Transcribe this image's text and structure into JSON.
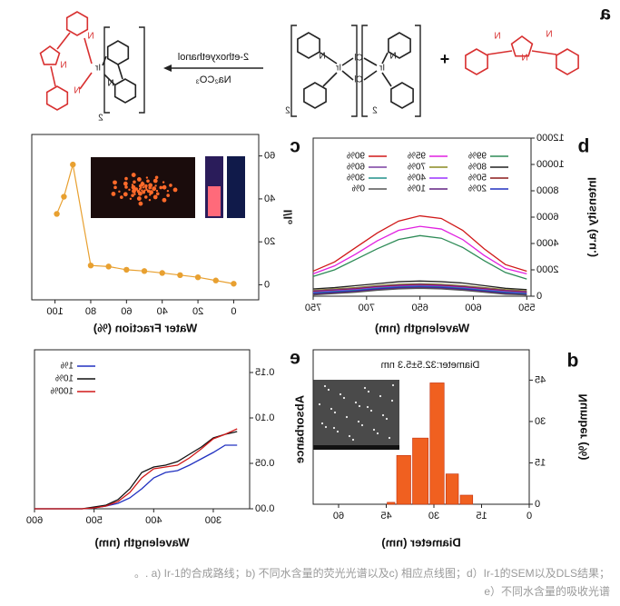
{
  "scheme": {
    "panel": "a",
    "reagent": "2-ethoxyethanol",
    "base": "Na₂CO₃",
    "plus": "+",
    "atoms": [
      "N",
      "N",
      "N",
      "Ir",
      "Cl",
      "Cl",
      "Ir",
      "N",
      "N",
      "2",
      "2",
      "Ir",
      "N",
      "N",
      "N",
      "N",
      "2"
    ]
  },
  "chart_data": [
    {
      "type": "line",
      "panel": "b",
      "xlabel": "Wavelength (nm)",
      "ylabel": "Intensity (a.u.)",
      "x": [
        550,
        570,
        590,
        610,
        630,
        650,
        670,
        690,
        710,
        730,
        750
      ],
      "xlim": [
        546,
        750
      ],
      "xticks": [
        550,
        600,
        650,
        700,
        750
      ],
      "ylim": [
        0,
        12000
      ],
      "yticks": [
        0,
        2000,
        4000,
        6000,
        8000,
        10000,
        12000
      ],
      "series": [
        {
          "name": "99%",
          "color": "#2e8b57",
          "values": [
            1300,
            1800,
            2700,
            3700,
            4400,
            4600,
            4300,
            3600,
            2800,
            2000,
            1500
          ]
        },
        {
          "name": "95%",
          "color": "#e020e0",
          "values": [
            1700,
            2100,
            3100,
            4300,
            5100,
            5300,
            5000,
            4200,
            3200,
            2300,
            1700
          ]
        },
        {
          "name": "90%",
          "color": "#d01818",
          "values": [
            1900,
            2400,
            3600,
            5000,
            5900,
            6100,
            5700,
            4800,
            3700,
            2600,
            1900
          ]
        },
        {
          "name": "80%",
          "color": "#222222",
          "values": [
            500,
            600,
            800,
            1000,
            1100,
            1150,
            1100,
            950,
            800,
            650,
            550
          ]
        },
        {
          "name": "70%",
          "color": "#8a8a20",
          "values": [
            400,
            500,
            650,
            800,
            900,
            950,
            900,
            800,
            650,
            550,
            450
          ]
        },
        {
          "name": "60%",
          "color": "#7a3fa0",
          "values": [
            350,
            450,
            600,
            750,
            850,
            900,
            850,
            750,
            600,
            500,
            400
          ]
        },
        {
          "name": "50%",
          "color": "#8b1a1a",
          "values": [
            300,
            400,
            550,
            700,
            800,
            850,
            800,
            700,
            550,
            450,
            350
          ]
        },
        {
          "name": "40%",
          "color": "#9b30ff",
          "values": [
            250,
            350,
            500,
            650,
            750,
            800,
            750,
            650,
            500,
            400,
            300
          ]
        },
        {
          "name": "30%",
          "color": "#20908a",
          "values": [
            200,
            300,
            450,
            600,
            700,
            750,
            700,
            600,
            450,
            350,
            250
          ]
        },
        {
          "name": "20%",
          "color": "#2030c0",
          "values": [
            150,
            250,
            400,
            550,
            650,
            700,
            650,
            550,
            400,
            300,
            200
          ]
        },
        {
          "name": "10%",
          "color": "#602080",
          "values": [
            100,
            200,
            350,
            500,
            600,
            650,
            600,
            500,
            350,
            250,
            150
          ]
        },
        {
          "name": "0%",
          "color": "#555555",
          "values": [
            100,
            150,
            300,
            450,
            550,
            600,
            550,
            450,
            300,
            200,
            100
          ]
        }
      ]
    },
    {
      "type": "line",
      "panel": "c",
      "xlabel": "Water Fraction (%)",
      "ylabel": "I/I₀",
      "markers": true,
      "x": [
        0,
        10,
        20,
        30,
        40,
        50,
        60,
        70,
        80,
        90,
        95,
        99
      ],
      "values": [
        0.5,
        2,
        3.5,
        4.5,
        5.5,
        6.4,
        7,
        8.5,
        9,
        56,
        41,
        33
      ],
      "color": "#e8a030",
      "xlim": [
        -14,
        113
      ],
      "xticks": [
        0,
        20,
        40,
        60,
        80,
        100
      ],
      "ylim": [
        -7,
        70
      ],
      "yticks": [
        0,
        20,
        40,
        60
      ]
    },
    {
      "type": "histogram",
      "panel": "d",
      "xlabel": "Diameter (nm)",
      "ylabel": "Number (%)",
      "annotation": "Diameter:32.5±5.3 nm",
      "bins": [
        17.5,
        22,
        26.5,
        31.5,
        37,
        42,
        45
      ],
      "values": [
        3.3,
        11,
        44,
        24,
        17.7,
        0.7
      ],
      "color": "#f06020",
      "xlim": [
        0,
        68
      ],
      "xticks": [
        0,
        15,
        30,
        45,
        60
      ],
      "ylim": [
        0,
        56
      ],
      "yticks": [
        0,
        15,
        30,
        45
      ]
    },
    {
      "type": "line",
      "panel": "e",
      "xlabel": "Wavelength (nm)",
      "ylabel": "Absorbance",
      "x": [
        260,
        280,
        300,
        320,
        340,
        360,
        380,
        400,
        420,
        440,
        460,
        480,
        500,
        520,
        540,
        560,
        580,
        600
      ],
      "xlim": [
        239,
        600
      ],
      "xticks": [
        300,
        400,
        500,
        600
      ],
      "ylim": [
        0,
        0.175
      ],
      "yticks": [
        {
          "value": 0,
          "label": "0.00"
        },
        0.05,
        {
          "value": 0.1,
          "label": "0.10"
        },
        0.15
      ],
      "series": [
        {
          "name": "1%",
          "color": "#2030c0",
          "values": [
            0.07,
            0.07,
            0.062,
            0.055,
            0.048,
            0.042,
            0.04,
            0.034,
            0.022,
            0.012,
            0.006,
            0.003,
            0.001,
            0,
            0,
            0,
            0,
            0
          ]
        },
        {
          "name": "10%",
          "color": "#111111",
          "values": [
            0.085,
            0.082,
            0.078,
            0.068,
            0.06,
            0.052,
            0.048,
            0.046,
            0.04,
            0.022,
            0.01,
            0.004,
            0.002,
            0,
            0,
            0,
            0,
            0
          ]
        },
        {
          "name": "100%",
          "color": "#d01818",
          "values": [
            0.088,
            0.082,
            0.077,
            0.066,
            0.056,
            0.048,
            0.046,
            0.044,
            0.034,
            0.018,
            0.008,
            0.003,
            0.001,
            0,
            0,
            0,
            0,
            0
          ]
        }
      ]
    }
  ],
  "caption": {
    "line1": "。. a) Ir-1的合成路线；b) 不同水含量的荧光光谱以及c) 相应点线图；d）Ir-1的SEM以及DLS结果；",
    "line2": "e）不同水含量的吸收光谱"
  }
}
